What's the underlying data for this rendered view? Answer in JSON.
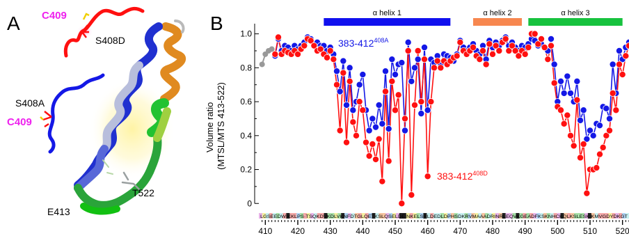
{
  "panelA": {
    "label": "A",
    "labels": {
      "c409_top": "C409",
      "s408d": "S408D",
      "s408a": "S408A",
      "c409_bottom": "C409",
      "t522": "T522",
      "e413": "E413"
    },
    "colors": {
      "red": "#ff1010",
      "blue": "#1418e6",
      "magenta": "#ee22ee",
      "yellow": "#f0d000"
    }
  },
  "panelB": {
    "label": "B",
    "helices": [
      {
        "label": "α helix 1",
        "start": 428,
        "end": 467,
        "color": "#1010ee"
      },
      {
        "label": "α helix 2",
        "start": 474,
        "end": 489,
        "color": "#f7874f"
      },
      {
        "label": "α helix 3",
        "start": 491,
        "end": 520,
        "color": "#17c23e"
      }
    ],
    "series_labels": {
      "blue_base": "383-412",
      "blue_sup": "408A",
      "red_base": "383-412",
      "red_sup": "408D"
    },
    "sequence_text": "LGSEEDWIKKLPS·TSQKDVKDLVKNFDTGLQETKSLQSELDEINKELSRLDEDLDPHSDKRVMAAADRINRLEQVKGEADFKSKNHCKQLKSLESKIKMVGDYDKGT"
  },
  "chart_data": {
    "type": "line",
    "ylabel": "Volume ratio\n(MTSL/MTS 413-522)",
    "xlabel": "",
    "xlim": [
      408,
      522
    ],
    "ylim": [
      -0.04,
      1.06
    ],
    "x_ticks": [
      410,
      420,
      430,
      440,
      450,
      460,
      470,
      480,
      490,
      500,
      510,
      520
    ],
    "y_ticks": [
      0,
      0.2,
      0.4,
      0.6,
      0.8,
      1.0
    ],
    "y_tick_labels": [
      "0",
      "0.2",
      "0.4",
      "0.6",
      "0.8",
      "1.0"
    ],
    "grid": false,
    "legend": "inline labels",
    "series": [
      {
        "name": "383-412 408A",
        "color": "#1418e6",
        "x": [
          413,
          414,
          415,
          416,
          417,
          418,
          419,
          420,
          421,
          422,
          423,
          424,
          425,
          426,
          427,
          428,
          429,
          430,
          431,
          432,
          433,
          434,
          435,
          436,
          437,
          438,
          439,
          440,
          441,
          442,
          443,
          444,
          445,
          446,
          447,
          448,
          449,
          450,
          451,
          452,
          453,
          454,
          455,
          456,
          457,
          458,
          459,
          460,
          461,
          462,
          463,
          464,
          465,
          466,
          467,
          468,
          469,
          470,
          471,
          472,
          473,
          474,
          475,
          476,
          477,
          478,
          479,
          480,
          481,
          482,
          483,
          484,
          485,
          486,
          487,
          488,
          489,
          490,
          491,
          492,
          493,
          494,
          495,
          496,
          497,
          498,
          499,
          500,
          501,
          502,
          503,
          504,
          505,
          506,
          507,
          508,
          509,
          510,
          511,
          512,
          513,
          514,
          515,
          516,
          517,
          518,
          519,
          520,
          521,
          522
        ],
        "values": [
          0.87,
          0.97,
          0.9,
          0.93,
          0.92,
          0.9,
          0.93,
          0.91,
          0.93,
          0.95,
          0.98,
          0.97,
          0.94,
          0.95,
          0.93,
          0.93,
          0.9,
          0.92,
          0.88,
          0.78,
          0.66,
          0.84,
          0.58,
          0.8,
          0.55,
          0.6,
          0.7,
          0.76,
          0.55,
          0.43,
          0.5,
          0.45,
          0.58,
          0.47,
          0.78,
          0.44,
          0.85,
          0.76,
          0.82,
          0.83,
          0.43,
          0.95,
          0.72,
          0.8,
          0.85,
          0.53,
          0.92,
          0.55,
          0.85,
          0.83,
          0.87,
          0.82,
          0.88,
          0.87,
          0.86,
          0.84,
          0.88,
          0.96,
          0.92,
          0.9,
          0.92,
          0.94,
          0.9,
          0.88,
          0.93,
          0.85,
          0.96,
          0.92,
          0.95,
          0.93,
          0.96,
          0.98,
          0.93,
          0.95,
          0.92,
          0.9,
          0.93,
          0.92,
          0.94,
          0.97,
          0.96,
          0.93,
          0.94,
          0.92,
          0.9,
          0.97,
          0.82,
          0.6,
          0.72,
          0.65,
          0.75,
          0.65,
          0.6,
          0.72,
          0.49,
          0.55,
          0.38,
          0.43,
          0.4,
          0.47,
          0.46,
          0.57,
          0.56,
          0.5,
          0.82,
          0.65,
          0.9,
          0.85,
          0.92,
          0.95
        ]
      },
      {
        "name": "383-412 408D",
        "color": "#ff1010",
        "x": [
          413,
          414,
          415,
          416,
          417,
          418,
          419,
          420,
          421,
          422,
          423,
          424,
          425,
          426,
          427,
          428,
          429,
          430,
          431,
          432,
          433,
          434,
          435,
          436,
          437,
          438,
          439,
          440,
          441,
          442,
          443,
          444,
          445,
          446,
          447,
          448,
          449,
          450,
          451,
          452,
          453,
          454,
          455,
          456,
          457,
          458,
          459,
          460,
          461,
          462,
          463,
          464,
          465,
          466,
          467,
          468,
          469,
          470,
          471,
          472,
          473,
          474,
          475,
          476,
          477,
          478,
          479,
          480,
          481,
          482,
          483,
          484,
          485,
          486,
          487,
          488,
          489,
          490,
          491,
          492,
          493,
          494,
          495,
          496,
          497,
          498,
          499,
          500,
          501,
          502,
          503,
          504,
          505,
          506,
          507,
          508,
          509,
          510,
          511,
          512,
          513,
          514,
          515,
          516,
          517,
          518,
          519,
          520,
          521,
          522
        ],
        "values": [
          0.88,
          0.98,
          0.88,
          0.9,
          0.89,
          0.88,
          0.9,
          0.88,
          0.91,
          0.93,
          0.97,
          0.96,
          0.93,
          0.9,
          0.91,
          0.88,
          0.86,
          0.9,
          0.85,
          0.7,
          0.43,
          0.77,
          0.36,
          0.72,
          0.48,
          0.4,
          0.6,
          0.55,
          0.36,
          0.28,
          0.35,
          0.26,
          0.38,
          0.13,
          0.66,
          0.25,
          0.72,
          0.55,
          0.64,
          0.0,
          0.5,
          0.9,
          0.05,
          0.58,
          0.9,
          0.6,
          0.85,
          0.16,
          0.6,
          0.8,
          0.84,
          0.8,
          0.84,
          0.82,
          0.84,
          0.86,
          0.87,
          0.95,
          0.9,
          0.88,
          0.9,
          0.92,
          0.87,
          0.85,
          0.9,
          0.82,
          0.94,
          0.88,
          0.93,
          0.9,
          0.95,
          0.97,
          0.9,
          0.93,
          0.9,
          0.87,
          0.9,
          0.88,
          0.92,
          1.0,
          1.0,
          0.94,
          0.97,
          0.92,
          0.85,
          0.93,
          0.71,
          0.57,
          0.55,
          0.47,
          0.52,
          0.4,
          0.34,
          0.61,
          0.27,
          0.35,
          0.06,
          0.2,
          0.2,
          0.21,
          0.29,
          0.33,
          0.4,
          0.43,
          0.65,
          0.55,
          0.82,
          0.76,
          0.87,
          0.93
        ]
      },
      {
        "name": "",
        "color": "#999999",
        "x": [
          409,
          410,
          411,
          412
        ],
        "values": [
          0.82,
          0.88,
          0.9,
          0.91
        ]
      }
    ]
  }
}
